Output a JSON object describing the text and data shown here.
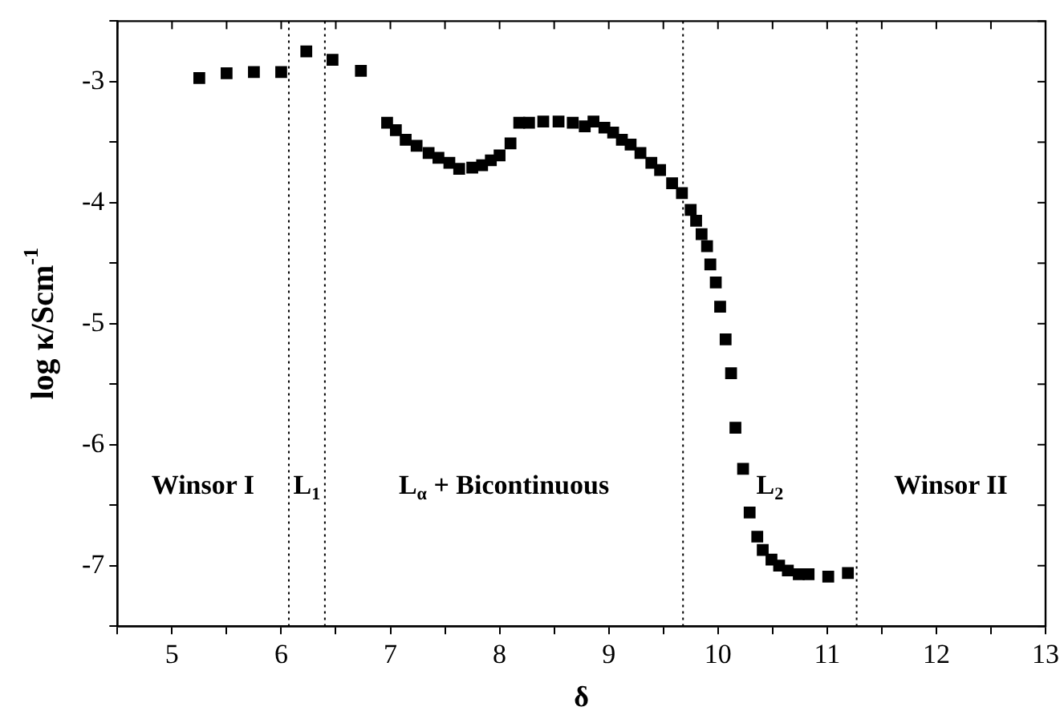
{
  "chart_data": {
    "type": "scatter",
    "xlabel": "δ",
    "ylabel": "log κ/Scm$^{-1}$",
    "marker": "square",
    "grid": false,
    "legend": false,
    "xlim": [
      4.5,
      13
    ],
    "ylim": [
      -7.5,
      -2.5
    ],
    "xticks": [
      {
        "value": 4.5,
        "label": null
      },
      5,
      {
        "value": 5.5,
        "label": null
      },
      6,
      {
        "value": 6.5,
        "label": null
      },
      7,
      {
        "value": 7.5,
        "label": null
      },
      8,
      {
        "value": 8.5,
        "label": null
      },
      9,
      {
        "value": 9.5,
        "label": null
      },
      10,
      {
        "value": 10.5,
        "label": null
      },
      11,
      {
        "value": 11.5,
        "label": null
      },
      12,
      {
        "value": 12.5,
        "label": null
      },
      13
    ],
    "yticks": [
      {
        "value": -7.5,
        "label": null
      },
      -7,
      {
        "value": -6.5,
        "label": null
      },
      -6,
      {
        "value": -5.5,
        "label": null
      },
      -5,
      {
        "value": -4.5,
        "label": null
      },
      -4,
      {
        "value": -3.5,
        "label": null
      },
      -3,
      {
        "value": -2.5,
        "label": null
      }
    ],
    "series": [
      {
        "color": "#000000",
        "x": [
          5.25,
          5.5,
          5.75,
          6.0,
          6.23,
          6.47,
          6.73,
          6.97,
          7.05,
          7.14,
          7.24,
          7.35,
          7.44,
          7.54,
          7.63,
          7.75,
          7.84,
          7.92,
          8.0,
          8.1,
          8.18,
          8.27,
          8.4,
          8.54,
          8.67,
          8.78,
          8.86,
          8.96,
          9.04,
          9.12,
          9.2,
          9.29,
          9.39,
          9.47,
          9.58,
          9.67,
          9.75,
          9.8,
          9.85,
          9.9,
          9.93,
          9.98,
          10.02,
          10.07,
          10.12,
          10.16,
          10.23,
          10.29,
          10.36,
          10.41,
          10.49,
          10.56,
          10.64,
          10.74,
          10.83,
          11.01,
          11.19
        ],
        "values": [
          -2.97,
          -2.93,
          -2.92,
          -2.92,
          -2.75,
          -2.82,
          -2.91,
          -3.34,
          -3.4,
          -3.48,
          -3.53,
          -3.59,
          -3.63,
          -3.67,
          -3.72,
          -3.71,
          -3.69,
          -3.65,
          -3.61,
          -3.51,
          -3.34,
          -3.34,
          -3.33,
          -3.33,
          -3.34,
          -3.37,
          -3.33,
          -3.38,
          -3.42,
          -3.48,
          -3.52,
          -3.59,
          -3.67,
          -3.73,
          -3.84,
          -3.92,
          -4.06,
          -4.15,
          -4.26,
          -4.36,
          -4.51,
          -4.66,
          -4.86,
          -5.13,
          -5.41,
          -5.86,
          -6.2,
          -6.56,
          -6.76,
          -6.87,
          -6.95,
          -7.0,
          -7.04,
          -7.07,
          -7.07,
          -7.09,
          -7.06
        ]
      }
    ],
    "ref_lines": [
      {
        "axis": "x",
        "value": 6.07,
        "line_style": "dotted",
        "color": "#000000"
      },
      {
        "axis": "x",
        "value": 6.4,
        "line_style": "dotted",
        "color": "#000000"
      },
      {
        "axis": "x",
        "value": 9.68,
        "line_style": "dotted",
        "color": "#000000"
      },
      {
        "axis": "x",
        "value": 11.27,
        "line_style": "dotted",
        "color": "#000000"
      }
    ],
    "annotations": [
      "Winsor I",
      "L$_{1}$",
      "L$_{α}$ + Bicontinuous",
      "L$_{2}$",
      "Winsor II"
    ]
  }
}
